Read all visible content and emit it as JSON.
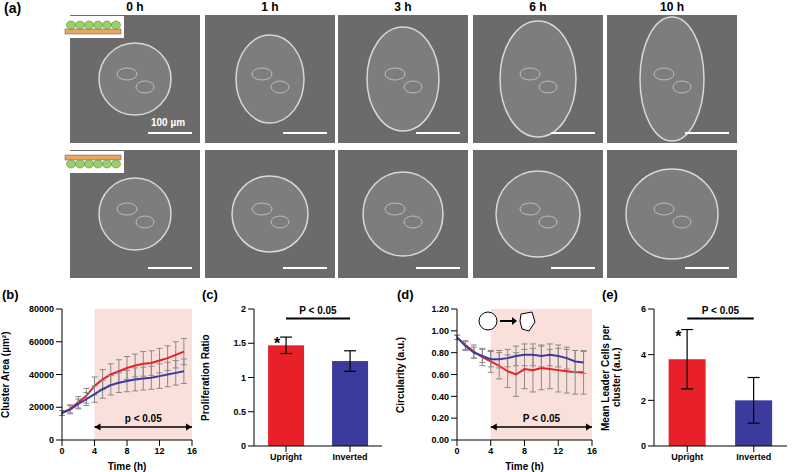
{
  "image_panel": {
    "panel_label": "(a)",
    "times": [
      "0 h",
      "1 h",
      "3 h",
      "6 h",
      "10 h"
    ],
    "scale_bar": "100 µm"
  },
  "chart_data": [
    {
      "panel_label": "(b)",
      "type": "line",
      "x": [
        0,
        1,
        2,
        3,
        4,
        5,
        6,
        7,
        8,
        9,
        10,
        11,
        12,
        13,
        14,
        15
      ],
      "series": [
        {
          "color": "#e8202a",
          "values": [
            16500,
            19000,
            23000,
            27000,
            33000,
            37000,
            40000,
            42000,
            44000,
            45500,
            46500,
            47000,
            48500,
            50000,
            52000,
            54000
          ],
          "errors": [
            1500,
            2500,
            3500,
            4500,
            5500,
            6000,
            6500,
            7000,
            7000,
            7000,
            7500,
            7500,
            7500,
            7500,
            8000,
            8000
          ]
        },
        {
          "color": "#3b3b9e",
          "values": [
            16500,
            18500,
            22000,
            25000,
            28000,
            31000,
            33500,
            35000,
            36000,
            37000,
            37500,
            38000,
            39000,
            40000,
            41000,
            42000
          ],
          "errors": [
            1500,
            2500,
            3000,
            4000,
            5000,
            5500,
            6000,
            6000,
            6500,
            7000,
            7000,
            7000,
            7500,
            7500,
            7500,
            7500
          ]
        }
      ],
      "xlim": [
        0,
        16
      ],
      "xticks": [
        0,
        4,
        8,
        12,
        16
      ],
      "ylim": [
        0,
        80000
      ],
      "yticks": [
        0,
        20000,
        40000,
        60000,
        80000
      ],
      "x_label": "Time (h)",
      "y_label": "Cluster Area (µm²)",
      "annotations": [
        {
          "text": "p < 0.05",
          "x": [
            4,
            16
          ]
        }
      ]
    },
    {
      "panel_label": "(c)",
      "type": "bar",
      "categories": [
        "Upright",
        "Inverted"
      ],
      "values": [
        1.47,
        1.24
      ],
      "errors": [
        0.12,
        0.15
      ],
      "colors": [
        "#e8202a",
        "#3b3b9e"
      ],
      "ylim": [
        0,
        2
      ],
      "yticks": [
        0,
        0.5,
        1,
        1.5,
        2
      ],
      "y_label": "Proliferation Ratio",
      "annotations": [
        {
          "text": "P < 0.05",
          "between": [
            "Upright",
            "Inverted"
          ]
        },
        {
          "text": "*",
          "category": "Upright"
        }
      ]
    },
    {
      "panel_label": "(d)",
      "type": "line",
      "x": [
        0,
        1,
        2,
        3,
        4,
        5,
        6,
        7,
        8,
        9,
        10,
        11,
        12,
        13,
        14,
        15
      ],
      "series": [
        {
          "color": "#e8202a",
          "values": [
            0.94,
            0.87,
            0.81,
            0.76,
            0.72,
            0.68,
            0.63,
            0.6,
            0.65,
            0.64,
            0.66,
            0.65,
            0.64,
            0.63,
            0.62,
            0.62
          ],
          "errors": [
            0.02,
            0.04,
            0.06,
            0.08,
            0.1,
            0.12,
            0.15,
            0.2,
            0.18,
            0.2,
            0.2,
            0.18,
            0.2,
            0.2,
            0.2,
            0.2
          ]
        },
        {
          "color": "#3b3b9e",
          "values": [
            0.94,
            0.86,
            0.8,
            0.77,
            0.74,
            0.74,
            0.75,
            0.77,
            0.78,
            0.78,
            0.77,
            0.78,
            0.77,
            0.75,
            0.72,
            0.71
          ],
          "errors": [
            0.02,
            0.04,
            0.05,
            0.06,
            0.07,
            0.08,
            0.08,
            0.09,
            0.1,
            0.1,
            0.1,
            0.1,
            0.1,
            0.1,
            0.1,
            0.1
          ]
        }
      ],
      "xlim": [
        0,
        16
      ],
      "xticks": [
        0,
        4,
        8,
        12,
        16
      ],
      "ylim": [
        0,
        1.2
      ],
      "yticks": [
        {
          "value": 0,
          "label": "0.00"
        },
        {
          "value": 0.2,
          "label": "0.20"
        },
        {
          "value": 0.4,
          "label": "0.40"
        },
        {
          "value": 0.6,
          "label": "0.60"
        },
        {
          "value": 0.8,
          "label": "0.80"
        },
        {
          "value": 1,
          "label": "1.00"
        },
        {
          "value": 1.2,
          "label": "1.20"
        }
      ],
      "x_label": "Time (h)",
      "y_label": "Circularity (a.u.)",
      "annotations": [
        {
          "text": "P < 0.05",
          "x": [
            4,
            16
          ]
        }
      ]
    },
    {
      "panel_label": "(e)",
      "type": "bar",
      "categories": [
        "Upright",
        "Inverted"
      ],
      "values": [
        3.8,
        2.0
      ],
      "errors": [
        1.3,
        1.0
      ],
      "colors": [
        "#e8202a",
        "#3b3b9e"
      ],
      "ylim": [
        0,
        6
      ],
      "yticks": [
        0,
        2,
        4,
        6
      ],
      "y_label": "Mean Leader Cells per cluster (a.u.)",
      "annotations": [
        {
          "text": "P < 0.05",
          "between": [
            "Upright",
            "Inverted"
          ]
        },
        {
          "text": "*",
          "category": "Upright"
        }
      ]
    }
  ]
}
